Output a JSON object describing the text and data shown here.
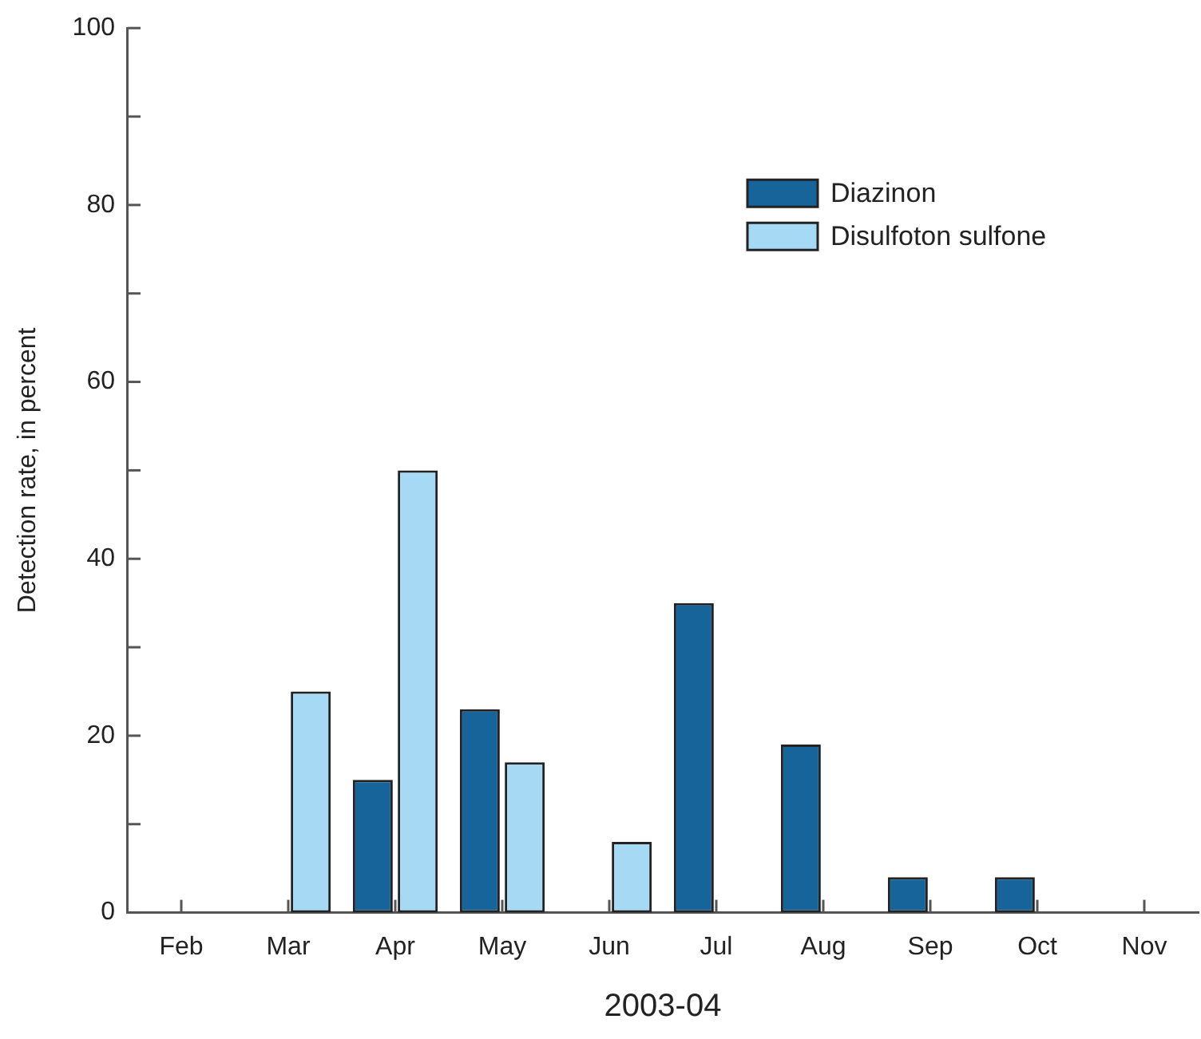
{
  "chart_data": {
    "type": "bar",
    "xlabel": "2003-04",
    "ylabel": "Detection rate, in percent",
    "categories": [
      "Feb",
      "Mar",
      "Apr",
      "May",
      "Jun",
      "Jul",
      "Aug",
      "Sep",
      "Oct",
      "Nov"
    ],
    "series": [
      {
        "name": "Diazinon",
        "color": "#17649b",
        "values": [
          null,
          null,
          15,
          23,
          null,
          35,
          19,
          4,
          4,
          null
        ]
      },
      {
        "name": "Disulfoton sulfone",
        "color": "#a6d9f4",
        "values": [
          null,
          25,
          50,
          17,
          8,
          null,
          null,
          null,
          null,
          null
        ]
      }
    ],
    "ylim": [
      0,
      100
    ],
    "yticks": [
      0,
      {
        "value": 10,
        "label": null
      },
      20,
      {
        "value": 30,
        "label": null
      },
      40,
      {
        "value": 50,
        "label": null
      },
      60,
      {
        "value": 70,
        "label": null
      },
      80,
      {
        "value": 90,
        "label": null
      },
      100
    ],
    "grid": false,
    "legend": "top right"
  }
}
